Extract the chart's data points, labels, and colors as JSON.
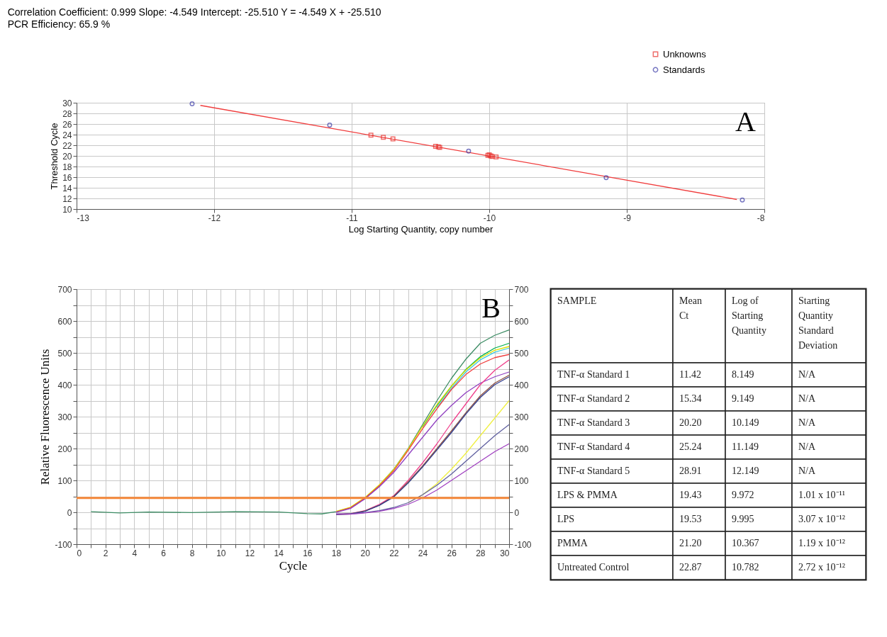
{
  "chart_data": [
    {
      "type": "scatter",
      "title": "Correlation Coefficient: 0.999   Slope: -4.549   Intercept: -25.510   Y = -4.549 X + -25.510",
      "subtitle": "PCR Efficiency: 65.9 %",
      "xlabel": "Log Starting Quantity, copy number",
      "ylabel": "Threshold Cycle",
      "annotations": [
        "A"
      ],
      "xlim": [
        -13,
        -8
      ],
      "xticks": [
        -13,
        -12,
        -11,
        -10,
        -9,
        -8
      ],
      "ylim": [
        10,
        30
      ],
      "yticks": [
        10,
        12,
        14,
        16,
        18,
        20,
        22,
        24,
        26,
        28,
        30
      ],
      "grid": true,
      "legend": "top right",
      "series": [
        {
          "name": "Unknowns",
          "color": "#e8302c",
          "marker": "square",
          "x": [
            -10.86,
            -10.77,
            -10.7,
            -10.39,
            -10.37,
            -10.36,
            -10.01,
            -10.0,
            -9.99,
            -9.98,
            -9.95
          ],
          "values": [
            23.9,
            23.5,
            23.2,
            21.8,
            21.7,
            21.6,
            20.1,
            20.2,
            20.0,
            19.9,
            19.8
          ]
        },
        {
          "name": "Standards",
          "color": "#3c3ca8",
          "marker": "circle",
          "x": [
            -12.16,
            -11.16,
            -10.15,
            -9.15,
            -8.16
          ],
          "values": [
            29.8,
            25.8,
            20.9,
            15.9,
            11.7
          ]
        },
        {
          "type": "line",
          "color": "#f03c3c",
          "x": [
            -12.1,
            -8.2
          ],
          "values": [
            29.5,
            11.8
          ]
        }
      ]
    },
    {
      "type": "line",
      "xlabel": "Cycle",
      "ylabel": "Relative Fluorescence Units",
      "annotations": [
        "B"
      ],
      "grid": true,
      "line_style": "solid",
      "xlim": [
        0,
        30
      ],
      "xticks": [
        0,
        {
          "value": 1,
          "label": null
        },
        2,
        {
          "value": 3,
          "label": null
        },
        4,
        {
          "value": 5,
          "label": null
        },
        6,
        {
          "value": 7,
          "label": null
        },
        8,
        {
          "value": 9,
          "label": null
        },
        10,
        {
          "value": 11,
          "label": null
        },
        12,
        {
          "value": 13,
          "label": null
        },
        14,
        {
          "value": 15,
          "label": null
        },
        16,
        {
          "value": 17,
          "label": null
        },
        18,
        {
          "value": 19,
          "label": null
        },
        20,
        {
          "value": 21,
          "label": null
        },
        22,
        {
          "value": 23,
          "label": null
        },
        24,
        {
          "value": 25,
          "label": null
        },
        26,
        {
          "value": 27,
          "label": null
        },
        28,
        {
          "value": 29,
          "label": null
        },
        30
      ],
      "ylim": [
        -100,
        700
      ],
      "yticks": [
        -100,
        {
          "value": -50,
          "label": null
        },
        0,
        {
          "value": 50,
          "label": null
        },
        100,
        {
          "value": 150,
          "label": null
        },
        200,
        {
          "value": 250,
          "label": null
        },
        300,
        {
          "value": 350,
          "label": null
        },
        400,
        {
          "value": 450,
          "label": null
        },
        500,
        {
          "value": 550,
          "label": null
        },
        600,
        {
          "value": 650,
          "label": null
        },
        700
      ],
      "y2lim": [
        -100,
        700
      ],
      "y2ticks": [
        -100,
        {
          "value": -50,
          "label": null
        },
        0,
        {
          "value": 50,
          "label": null
        },
        100,
        {
          "value": 150,
          "label": null
        },
        200,
        {
          "value": 250,
          "label": null
        },
        300,
        {
          "value": 350,
          "label": null
        },
        400,
        {
          "value": 450,
          "label": null
        },
        500,
        {
          "value": 550,
          "label": null
        },
        600,
        {
          "value": 650,
          "label": null
        },
        700
      ],
      "ref_lines": [
        {
          "axis": "y",
          "value": 45,
          "color": "#f5883a"
        }
      ],
      "x": [
        1,
        3,
        5,
        8,
        11,
        14,
        16,
        17,
        18,
        19,
        20,
        21,
        22,
        23,
        24,
        25,
        26,
        27,
        28,
        29,
        30
      ],
      "series": [
        {
          "color": "#3c8c64",
          "values": [
            2,
            -2,
            1,
            -1,
            2,
            1,
            -4,
            -5,
            2,
            15,
            45,
            85,
            135,
            200,
            275,
            350,
            420,
            480,
            530,
            555,
            572
          ]
        },
        {
          "color": "#00b050",
          "values": [
            null,
            null,
            null,
            null,
            null,
            null,
            null,
            null,
            null,
            null,
            null,
            null,
            null,
            null,
            268,
            335,
            395,
            448,
            488,
            515,
            530
          ]
        },
        {
          "color": "#e0e000",
          "values": [
            null,
            null,
            null,
            null,
            null,
            null,
            null,
            null,
            3,
            16,
            46,
            86,
            134,
            198,
            270,
            338,
            396,
            446,
            484,
            508,
            520
          ]
        },
        {
          "color": "#40c8e0",
          "values": [
            null,
            null,
            null,
            null,
            null,
            null,
            null,
            null,
            null,
            null,
            null,
            null,
            null,
            null,
            null,
            328,
            388,
            440,
            478,
            502,
            515
          ]
        },
        {
          "color": "#f04040",
          "values": [
            null,
            null,
            null,
            null,
            null,
            null,
            null,
            null,
            1,
            14,
            44,
            83,
            130,
            194,
            262,
            325,
            385,
            432,
            465,
            485,
            495
          ]
        },
        {
          "color": "#9040c0",
          "values": [
            null,
            null,
            null,
            null,
            null,
            null,
            null,
            null,
            0,
            12,
            42,
            80,
            125,
            180,
            235,
            290,
            335,
            375,
            405,
            425,
            440
          ]
        },
        {
          "color": "#f0408c",
          "values": [
            null,
            null,
            null,
            null,
            null,
            null,
            null,
            null,
            -6,
            -4,
            5,
            25,
            52,
            100,
            155,
            215,
            280,
            340,
            400,
            445,
            478
          ]
        },
        {
          "color": "#8c5040",
          "values": [
            null,
            null,
            null,
            null,
            null,
            null,
            null,
            null,
            -7,
            -5,
            4,
            22,
            50,
            95,
            145,
            200,
            255,
            312,
            365,
            405,
            430
          ]
        },
        {
          "color": "#303c8c",
          "values": [
            null,
            null,
            null,
            null,
            null,
            null,
            null,
            null,
            -7,
            -5,
            3,
            22,
            48,
            92,
            142,
            196,
            250,
            308,
            360,
            400,
            425
          ]
        },
        {
          "color": "#f0f040",
          "values": [
            null,
            null,
            null,
            null,
            null,
            null,
            null,
            null,
            null,
            null,
            null,
            null,
            null,
            30,
            55,
            90,
            135,
            185,
            240,
            295,
            350
          ]
        },
        {
          "color": "#6060a0",
          "values": [
            null,
            null,
            null,
            null,
            null,
            null,
            null,
            null,
            -5,
            -5,
            -1,
            5,
            15,
            30,
            55,
            85,
            120,
            160,
            200,
            240,
            275
          ]
        },
        {
          "color": "#a040c0",
          "values": [
            null,
            null,
            null,
            null,
            null,
            null,
            null,
            null,
            -6,
            -6,
            -2,
            3,
            12,
            25,
            45,
            70,
            100,
            130,
            160,
            190,
            215
          ]
        }
      ]
    },
    {
      "type": "other",
      "annotations": [
        "SAMPLE",
        "Mean\nCt",
        "Log of\nStarting\nQuantity",
        "Starting\nQuantity\nStandard\nDeviation",
        "TNF-α Standard 1",
        "11.42",
        "8.149",
        "N/A",
        "TNF-α Standard 2",
        "15.34",
        "9.149",
        "N/A",
        "TNF-α Standard 3",
        "20.20",
        "10.149",
        "N/A",
        "TNF-α Standard 4",
        "25.24",
        "11.149",
        "N/A",
        "TNF-α Standard 5",
        "28.91",
        "12.149",
        "N/A",
        "LPS & PMMA",
        "19.43",
        "9.972",
        "1.01 x 10⁻¹¹",
        "LPS",
        "19.53",
        "9.995",
        "3.07 x 10⁻¹²",
        "PMMA",
        "21.20",
        "10.367",
        "1.19 x 10⁻¹²",
        "Untreated Control",
        "22.87",
        "10.782",
        "2.72 x 10⁻¹²"
      ]
    }
  ]
}
